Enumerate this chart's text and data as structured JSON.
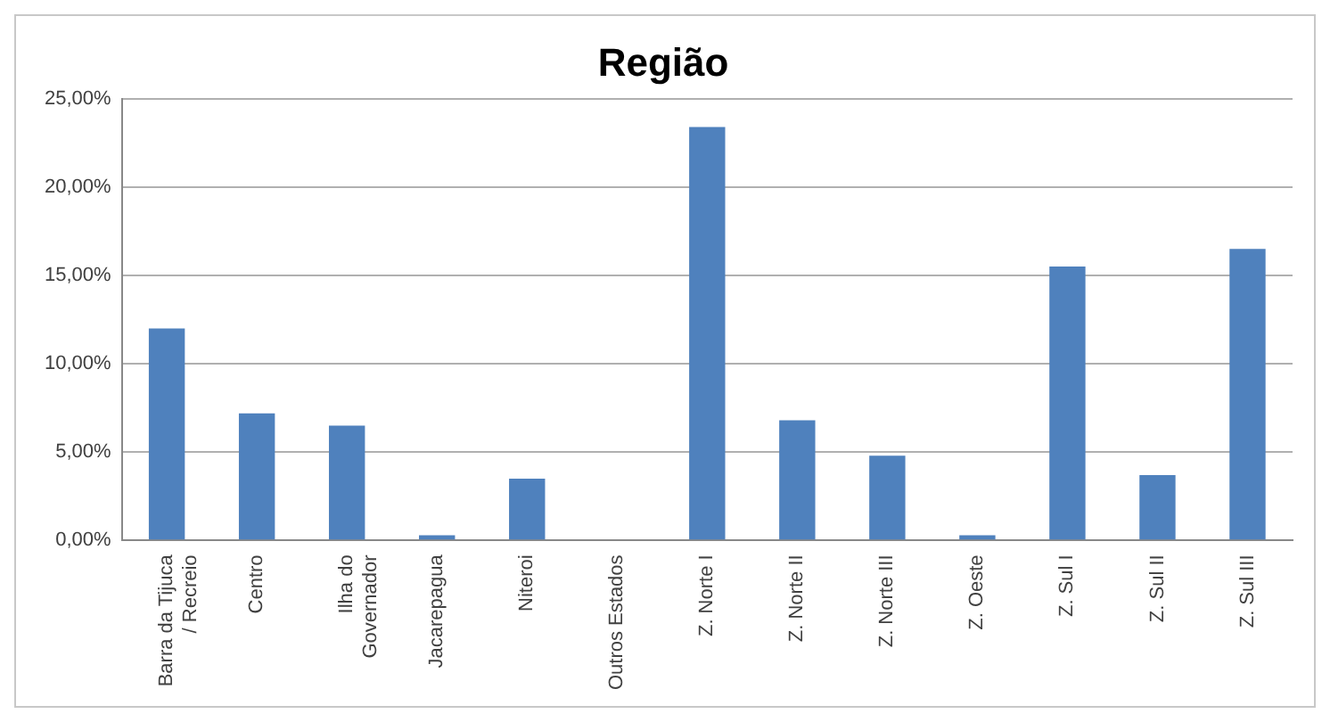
{
  "chart_data": {
    "type": "bar",
    "title": "Região",
    "categories": [
      "Barra da Tijuca / Recreio",
      "Centro",
      "Ilha do Governador",
      "Jacarepagua",
      "Niteroi",
      "Outros Estados",
      "Z. Norte I",
      "Z. Norte II",
      "Z. Norte III",
      "Z. Oeste",
      "Z. Sul I",
      "Z. Sul II",
      "Z. Sul III"
    ],
    "values": [
      12.0,
      7.2,
      6.5,
      0.3,
      3.5,
      0,
      23.4,
      6.8,
      4.8,
      0.3,
      15.5,
      3.7,
      16.5
    ],
    "color": "#4f81bd",
    "ylim": [
      0,
      25
    ],
    "yticks": [
      {
        "value": 0,
        "label": "0,00%"
      },
      {
        "value": 5,
        "label": "5,00%"
      },
      {
        "value": 10,
        "label": "10,00%"
      },
      {
        "value": 15,
        "label": "15,00%"
      },
      {
        "value": 20,
        "label": "20,00%"
      },
      {
        "value": 25,
        "label": "25,00%"
      }
    ],
    "grid": "y",
    "legend": false
  }
}
